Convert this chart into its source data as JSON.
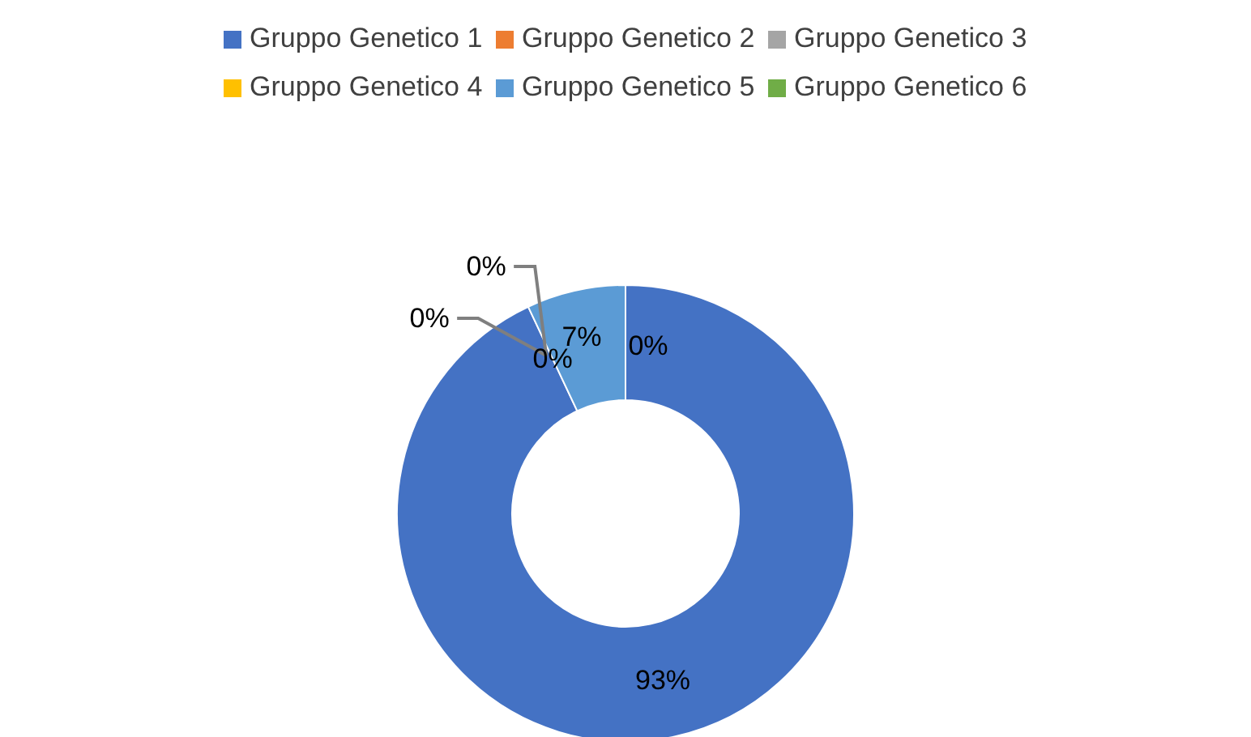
{
  "chart_data": {
    "type": "donut",
    "categories": [
      "Gruppo Genetico 1",
      "Gruppo Genetico 2",
      "Gruppo Genetico 3",
      "Gruppo Genetico 4",
      "Gruppo Genetico 5",
      "Gruppo Genetico 6"
    ],
    "values": [
      93,
      0,
      0,
      0,
      7,
      0
    ],
    "colors": [
      "#4472c4",
      "#ed7d31",
      "#a5a5a5",
      "#ffc000",
      "#5b9bd5",
      "#70ad47"
    ],
    "value_labels": [
      "93%",
      "0%",
      "0%",
      "0%",
      "7%",
      "0%"
    ],
    "legend": "top"
  }
}
